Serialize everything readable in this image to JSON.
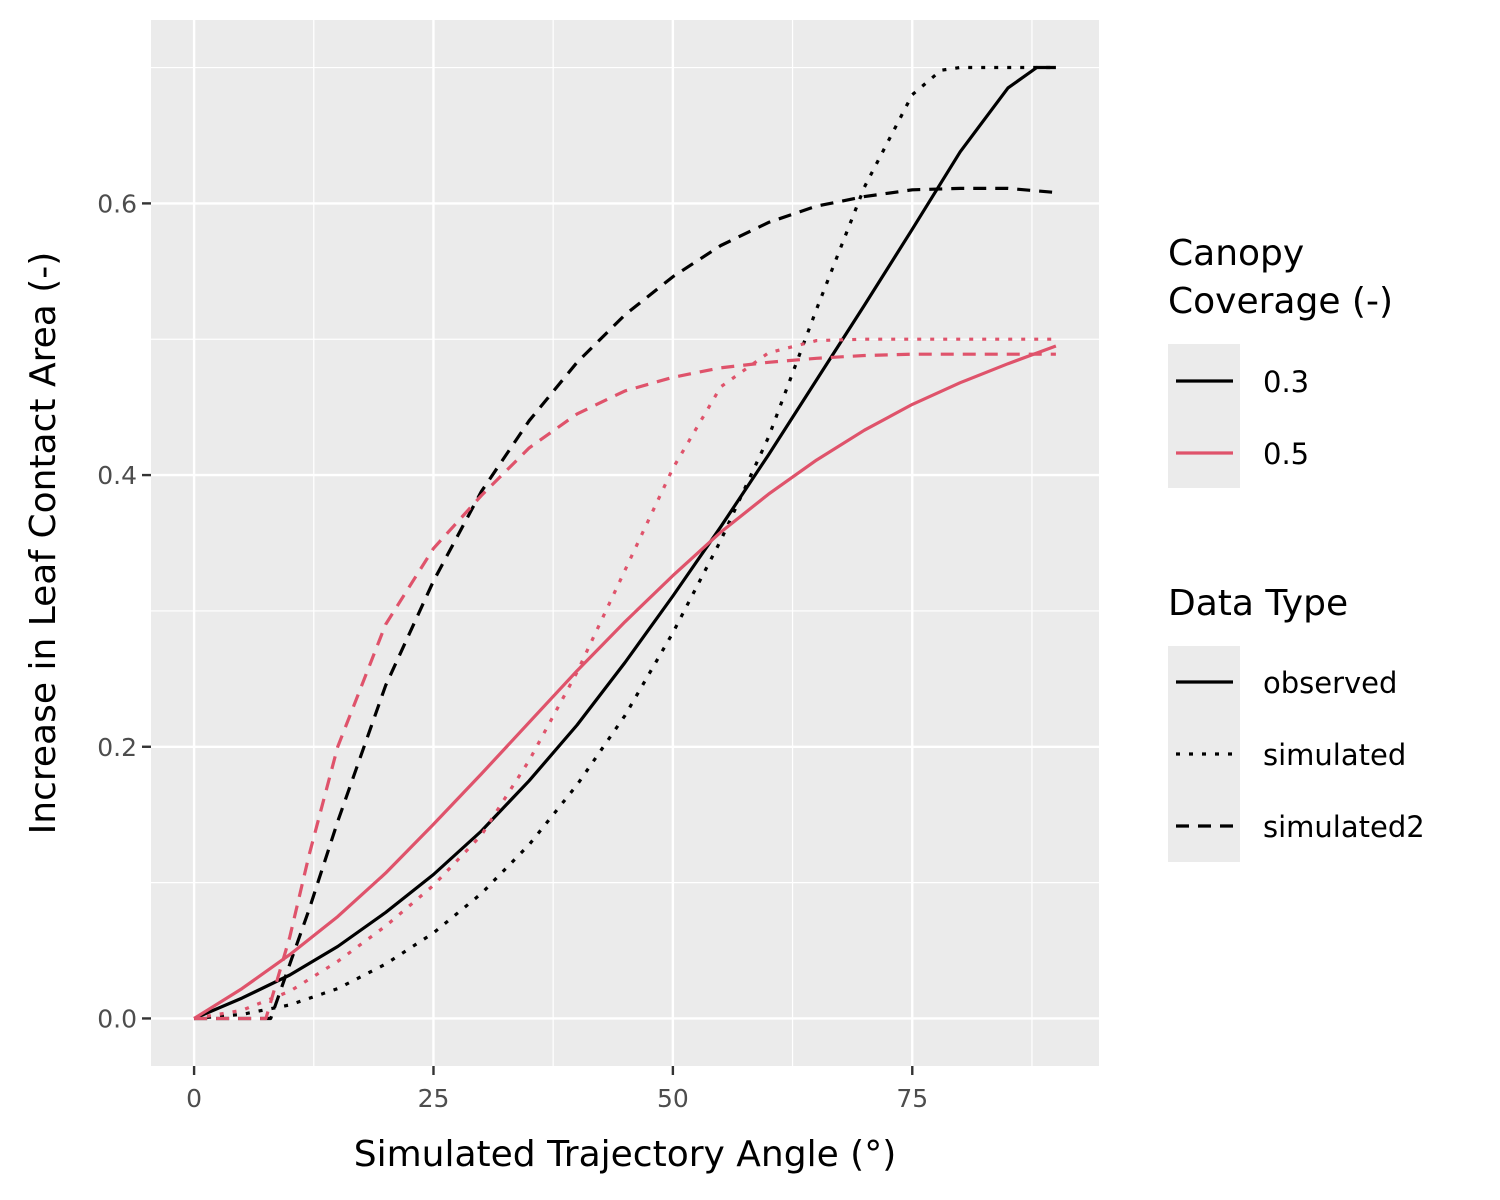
{
  "chart_data": {
    "type": "line",
    "title": "",
    "xlabel": "Simulated Trajectory Angle (°)",
    "ylabel": "Increase in Leaf Contact Area (-)",
    "xlim": [
      -4.5,
      94.5
    ],
    "ylim": [
      -0.035,
      0.735
    ],
    "xticks": [
      0,
      25,
      50,
      75
    ],
    "yticks": [
      0.0,
      0.2,
      0.4,
      0.6
    ],
    "xtick_labels": [
      "0",
      "25",
      "50",
      "75"
    ],
    "ytick_labels": [
      "0.0",
      "0.2",
      "0.4",
      "0.6"
    ],
    "grid": true,
    "legend": {
      "position": "right",
      "color_title_line1": "Canopy",
      "color_title_line2": "Coverage (-)",
      "color_entries": [
        {
          "label": "0.3",
          "color": "#000000"
        },
        {
          "label": "0.5",
          "color": "#DF536B"
        }
      ],
      "linetype_title": "Data Type",
      "linetype_entries": [
        {
          "label": "observed",
          "dash": "solid"
        },
        {
          "label": "simulated",
          "dash": "dotted"
        },
        {
          "label": "simulated2",
          "dash": "dashed"
        }
      ]
    },
    "series": [
      {
        "coverage": "0.3",
        "type": "observed",
        "color": "#000000",
        "dash": "solid",
        "x": [
          0,
          5,
          10,
          15,
          20,
          25,
          30,
          35,
          40,
          45,
          50,
          55,
          60,
          65,
          70,
          75,
          80,
          85,
          88,
          90
        ],
        "y": [
          0.0,
          0.015,
          0.032,
          0.053,
          0.078,
          0.106,
          0.138,
          0.175,
          0.216,
          0.262,
          0.311,
          0.362,
          0.415,
          0.47,
          0.525,
          0.581,
          0.638,
          0.685,
          0.7,
          0.7
        ]
      },
      {
        "coverage": "0.3",
        "type": "simulated",
        "color": "#000000",
        "dash": "dotted",
        "x": [
          0,
          5,
          10,
          15,
          20,
          25,
          30,
          35,
          40,
          45,
          50,
          55,
          60,
          65,
          70,
          75,
          78,
          80,
          85,
          90
        ],
        "y": [
          0.0,
          0.003,
          0.01,
          0.022,
          0.04,
          0.063,
          0.092,
          0.128,
          0.172,
          0.223,
          0.284,
          0.352,
          0.428,
          0.522,
          0.612,
          0.68,
          0.698,
          0.7,
          0.7,
          0.7
        ]
      },
      {
        "coverage": "0.3",
        "type": "simulated2",
        "color": "#000000",
        "dash": "dashed",
        "x": [
          0,
          5,
          8,
          10,
          12,
          15,
          20,
          25,
          30,
          35,
          40,
          45,
          50,
          55,
          60,
          65,
          70,
          75,
          80,
          85,
          90
        ],
        "y": [
          0.0,
          0.0,
          0.0,
          0.04,
          0.08,
          0.145,
          0.245,
          0.322,
          0.388,
          0.44,
          0.483,
          0.518,
          0.546,
          0.569,
          0.586,
          0.598,
          0.605,
          0.61,
          0.611,
          0.611,
          0.608
        ]
      },
      {
        "coverage": "0.5",
        "type": "observed",
        "color": "#DF536B",
        "dash": "solid",
        "x": [
          0,
          5,
          10,
          15,
          20,
          25,
          30,
          35,
          40,
          45,
          50,
          55,
          60,
          65,
          70,
          75,
          80,
          85,
          90
        ],
        "y": [
          0.0,
          0.022,
          0.047,
          0.075,
          0.107,
          0.143,
          0.18,
          0.218,
          0.256,
          0.292,
          0.326,
          0.358,
          0.386,
          0.411,
          0.433,
          0.452,
          0.468,
          0.482,
          0.495
        ]
      },
      {
        "coverage": "0.5",
        "type": "simulated",
        "color": "#DF536B",
        "dash": "dotted",
        "x": [
          0,
          5,
          10,
          15,
          20,
          25,
          30,
          35,
          40,
          45,
          50,
          55,
          60,
          65,
          70,
          75,
          80,
          85,
          90
        ],
        "y": [
          0.0,
          0.006,
          0.02,
          0.042,
          0.068,
          0.098,
          0.135,
          0.19,
          0.255,
          0.33,
          0.405,
          0.465,
          0.49,
          0.499,
          0.5,
          0.5,
          0.5,
          0.5,
          0.5
        ]
      },
      {
        "coverage": "0.5",
        "type": "simulated2",
        "color": "#DF536B",
        "dash": "dashed",
        "x": [
          0,
          5,
          7.5,
          10,
          12,
          15,
          20,
          25,
          30,
          35,
          40,
          45,
          50,
          55,
          60,
          65,
          70,
          75,
          80,
          85,
          90
        ],
        "y": [
          0.0,
          0.0,
          0.0,
          0.06,
          0.12,
          0.2,
          0.29,
          0.346,
          0.385,
          0.42,
          0.445,
          0.462,
          0.472,
          0.479,
          0.483,
          0.486,
          0.488,
          0.489,
          0.489,
          0.489,
          0.489
        ]
      }
    ]
  }
}
